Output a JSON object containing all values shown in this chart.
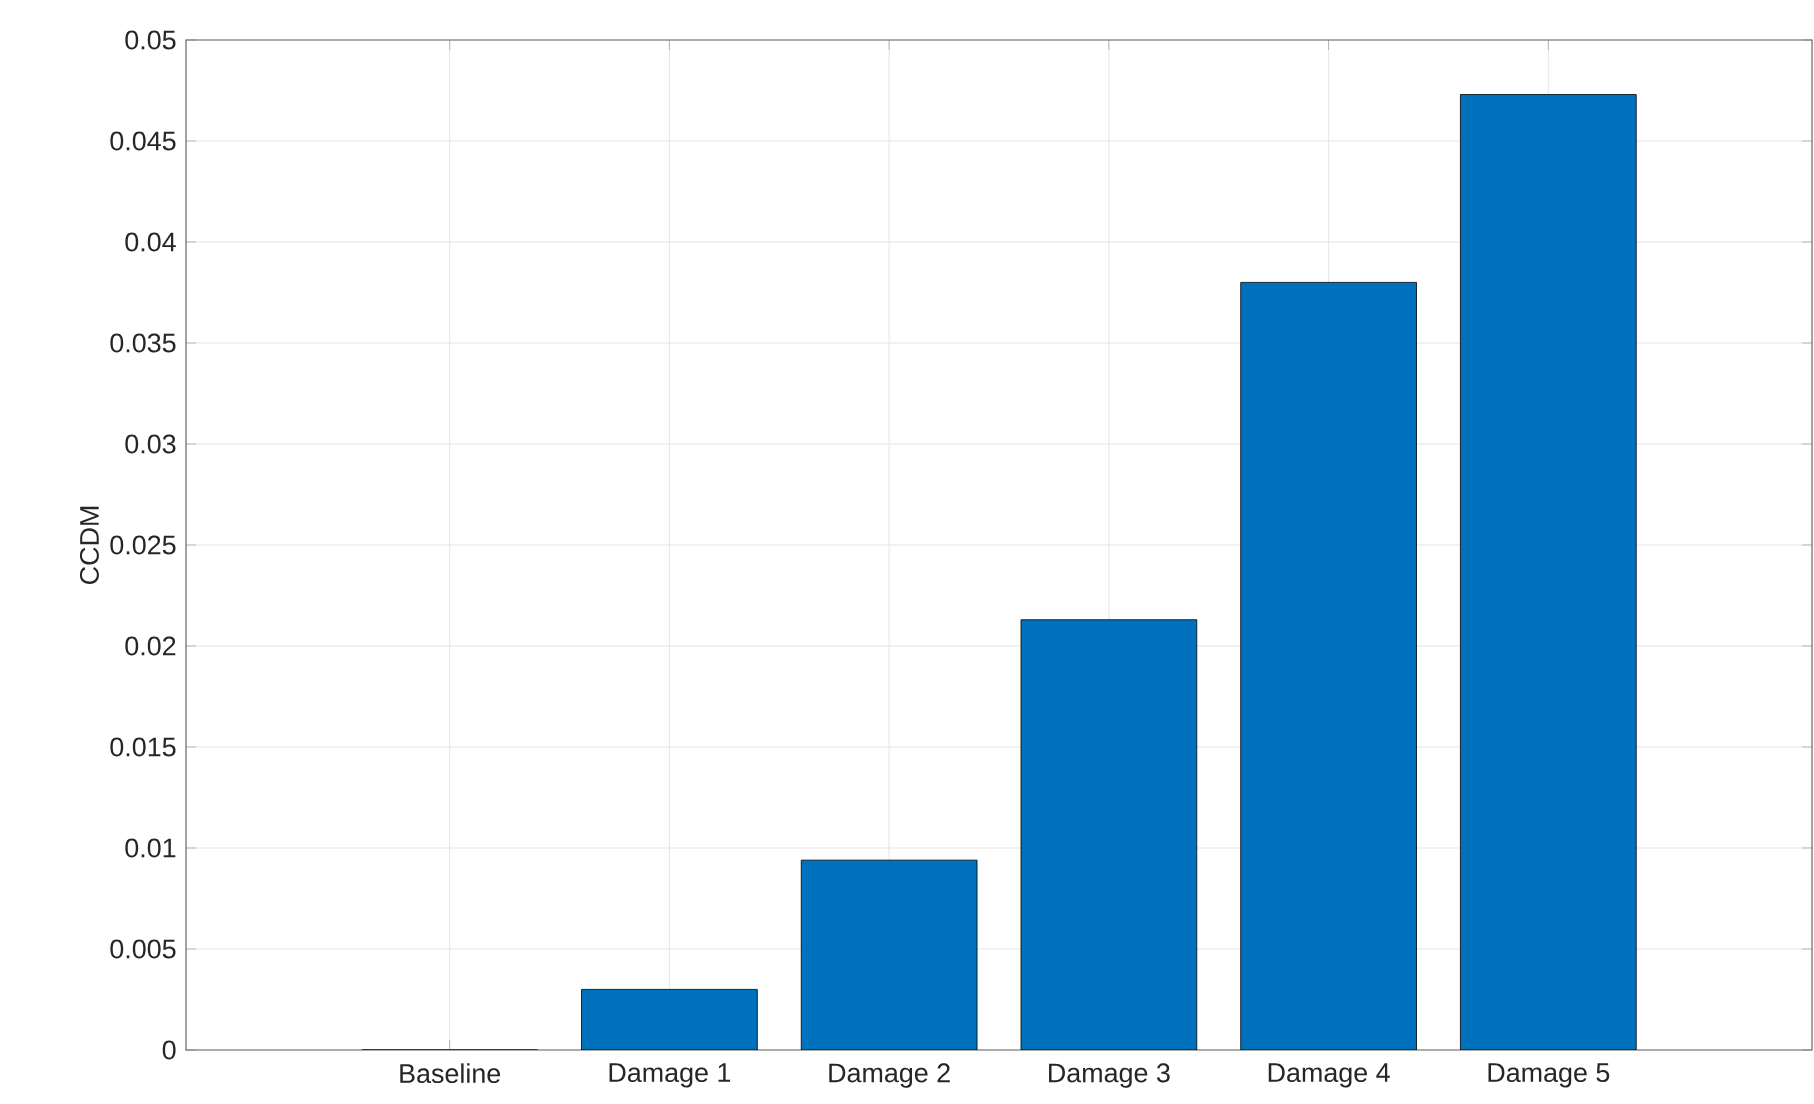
{
  "chart_data": {
    "type": "bar",
    "ylabel": "CCDM",
    "categories": [
      "Baseline",
      "Damage 1",
      "Damage 2",
      "Damage 3",
      "Damage 4",
      "Damage 5"
    ],
    "values": [
      0,
      0.003,
      0.0094,
      0.0213,
      0.038,
      0.0473
    ],
    "color": "#0072bd",
    "ylim": [
      0,
      0.05
    ],
    "yticks": [
      0,
      0.005,
      0.01,
      0.015,
      0.02,
      0.025,
      0.03,
      0.035,
      0.04,
      0.045,
      0.05
    ],
    "grid": true
  }
}
